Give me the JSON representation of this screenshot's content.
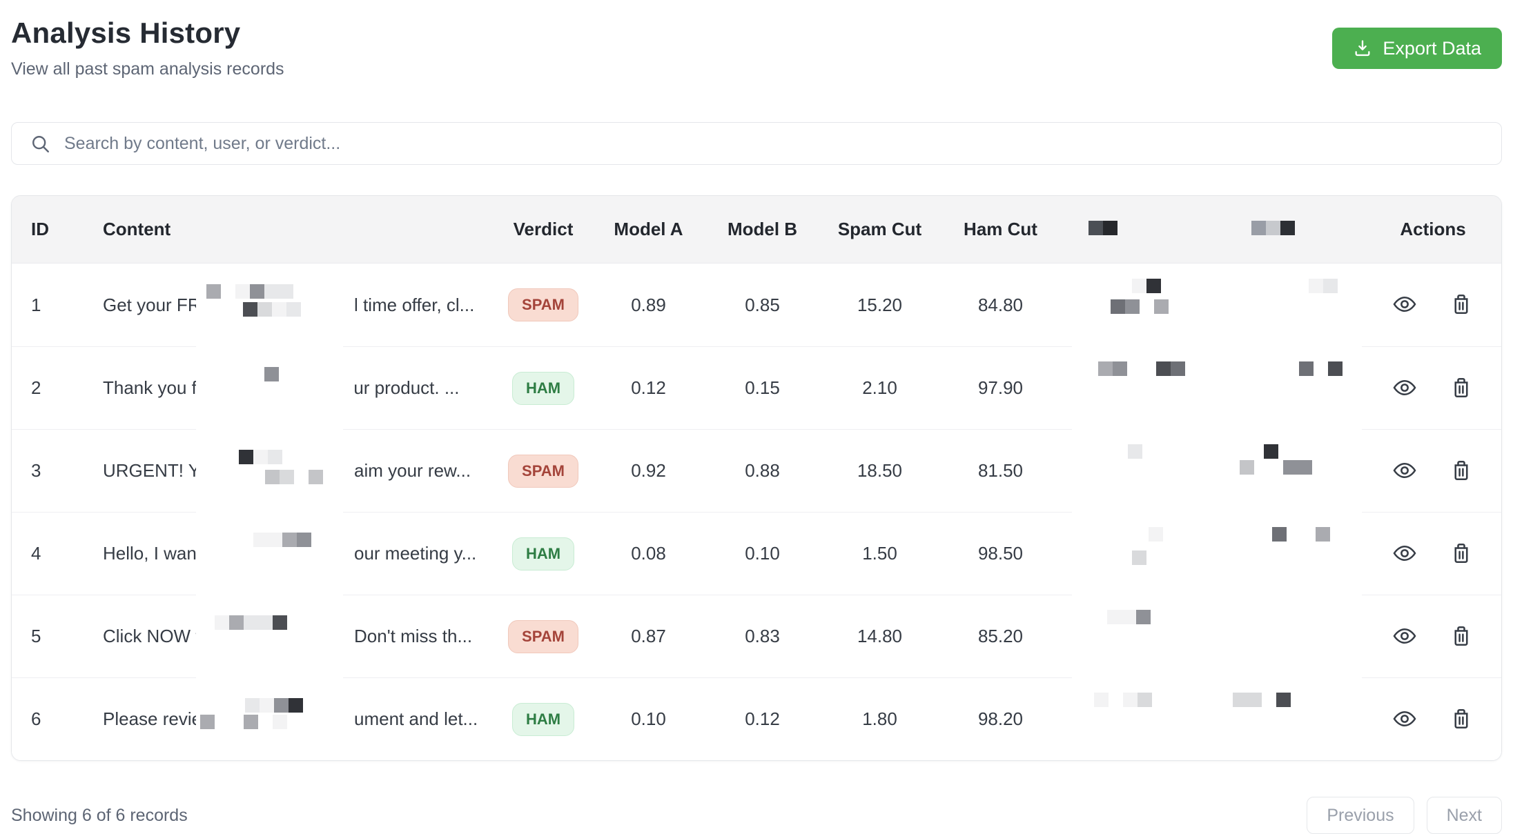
{
  "page": {
    "title": "Analysis History",
    "subtitle": "View all past spam analysis records"
  },
  "toolbar": {
    "export_label": "Export Data",
    "export_icon": "download-icon"
  },
  "search": {
    "placeholder": "Search by content, user, or verdict...",
    "icon": "search-icon"
  },
  "table": {
    "headers": {
      "id": "ID",
      "content": "Content",
      "verdict": "Verdict",
      "model_a": "Model A",
      "model_b": "Model B",
      "spam_cut": "Spam Cut",
      "ham_cut": "Ham Cut",
      "redacted_1": "",
      "redacted_2": "",
      "actions": "Actions"
    },
    "rows": [
      {
        "id": "1",
        "content_prefix": "Get your FRE",
        "content_suffix": "l time offer, cl...",
        "verdict": "SPAM",
        "model_a": "0.89",
        "model_b": "0.85",
        "spam_cut": "15.20",
        "ham_cut": "84.80"
      },
      {
        "id": "2",
        "content_prefix": "Thank you fo",
        "content_suffix": "ur product. ...",
        "verdict": "HAM",
        "model_a": "0.12",
        "model_b": "0.15",
        "spam_cut": "2.10",
        "ham_cut": "97.90"
      },
      {
        "id": "3",
        "content_prefix": "URGENT! You",
        "content_suffix": "aim your rew...",
        "verdict": "SPAM",
        "model_a": "0.92",
        "model_b": "0.88",
        "spam_cut": "18.50",
        "ham_cut": "81.50"
      },
      {
        "id": "4",
        "content_prefix": "Hello, I wante",
        "content_suffix": "our meeting y...",
        "verdict": "HAM",
        "model_a": "0.08",
        "model_b": "0.10",
        "spam_cut": "1.50",
        "ham_cut": "98.50"
      },
      {
        "id": "5",
        "content_prefix": "Click NOW fo",
        "content_suffix": "Don't miss th...",
        "verdict": "SPAM",
        "model_a": "0.87",
        "model_b": "0.83",
        "spam_cut": "14.80",
        "ham_cut": "85.20"
      },
      {
        "id": "6",
        "content_prefix": "Please review",
        "content_suffix": "ument and let...",
        "verdict": "HAM",
        "model_a": "0.10",
        "model_b": "0.12",
        "spam_cut": "1.80",
        "ham_cut": "98.20"
      }
    ],
    "row_action_icons": [
      "eye-icon",
      "trash-icon"
    ]
  },
  "footer": {
    "summary": "Showing 6 of 6 records",
    "previous_label": "Previous",
    "next_label": "Next"
  },
  "colors": {
    "export_button": "#4caf50",
    "spam_badge_bg": "#f9dcd2",
    "spam_badge_text": "#a4443a",
    "ham_badge_bg": "#e4f6e9",
    "ham_badge_text": "#2e7d44"
  }
}
